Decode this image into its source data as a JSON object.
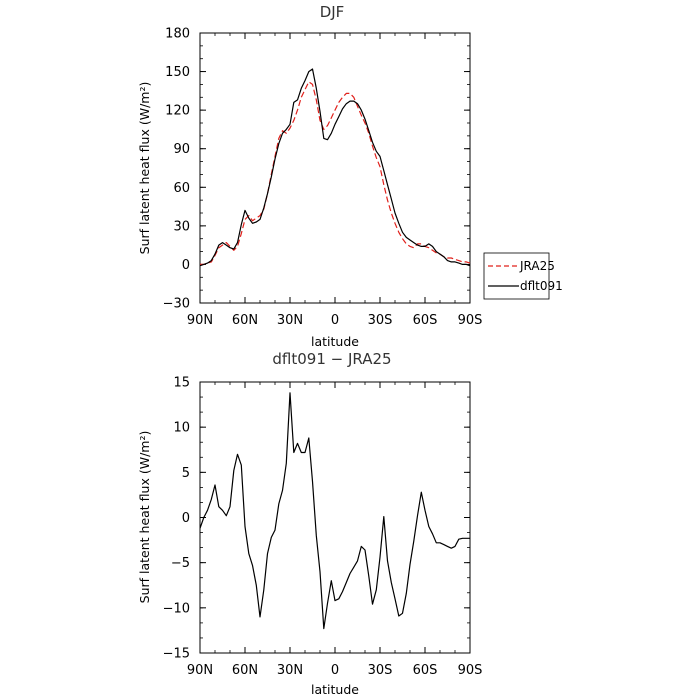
{
  "chart_data": [
    {
      "type": "line",
      "title": "DJF",
      "xlabel": "latitude",
      "ylabel": "Surf latent heat flux (W/m²)",
      "xlim": [
        90,
        -90
      ],
      "ylim": [
        -30,
        180
      ],
      "x_ticks": [
        90,
        60,
        30,
        0,
        -30,
        -60,
        -90
      ],
      "x_tick_labels": [
        "90N",
        "60N",
        "30N",
        "0",
        "30S",
        "60S",
        "90S"
      ],
      "y_ticks": [
        -30,
        0,
        30,
        60,
        90,
        120,
        150,
        180
      ],
      "y_tick_labels": [
        "−30",
        "0",
        "30",
        "60",
        "90",
        "120",
        "150",
        "180"
      ],
      "legend_position": "right",
      "series": [
        {
          "name": "JRA25",
          "color": "#e0201b",
          "dash": "dashed",
          "x": [
            90,
            87.5,
            85,
            82.5,
            80,
            77.5,
            75,
            72.5,
            70,
            67.5,
            65,
            62.5,
            60,
            57.5,
            55,
            52.5,
            50,
            47.5,
            45,
            42.5,
            40,
            37.5,
            35,
            32.5,
            30,
            27.5,
            25,
            22.5,
            20,
            17.5,
            15,
            12.5,
            10,
            7.5,
            5,
            2.5,
            0,
            -2.5,
            -5,
            -7.5,
            -10,
            -12.5,
            -15,
            -17.5,
            -20,
            -22.5,
            -25,
            -27.5,
            -30,
            -32.5,
            -35,
            -37.5,
            -40,
            -42.5,
            -45,
            -47.5,
            -50,
            -52.5,
            -55,
            -57.5,
            -60,
            -62.5,
            -65,
            -67.5,
            -70,
            -72.5,
            -75,
            -77.5,
            -80,
            -82.5,
            -85,
            -87.5,
            -90
          ],
          "y": [
            0,
            0,
            1,
            2,
            7,
            13,
            15,
            17,
            14,
            11,
            14,
            24,
            35,
            38,
            34,
            36,
            38,
            43,
            55,
            70,
            84,
            98,
            104,
            102,
            106,
            112,
            120,
            130,
            136,
            142,
            140,
            128,
            112,
            105,
            108,
            114,
            120,
            126,
            130,
            133,
            133,
            130,
            123,
            116,
            110,
            102,
            92,
            83,
            76,
            62,
            50,
            40,
            32,
            25,
            20,
            16,
            14,
            13,
            16,
            16,
            14,
            13,
            11,
            9,
            8,
            6,
            5,
            5,
            4,
            3,
            2,
            2,
            1
          ]
        },
        {
          "name": "dflt091",
          "color": "#000000",
          "dash": "solid",
          "x": [
            90,
            87.5,
            85,
            82.5,
            80,
            77.5,
            75,
            72.5,
            70,
            67.5,
            65,
            62.5,
            60,
            57.5,
            55,
            52.5,
            50,
            47.5,
            45,
            42.5,
            40,
            37.5,
            35,
            32.5,
            30,
            27.5,
            25,
            22.5,
            20,
            17.5,
            15,
            12.5,
            10,
            7.5,
            5,
            2.5,
            0,
            -2.5,
            -5,
            -7.5,
            -10,
            -12.5,
            -15,
            -17.5,
            -20,
            -22.5,
            -25,
            -27.5,
            -30,
            -32.5,
            -35,
            -37.5,
            -40,
            -42.5,
            -45,
            -47.5,
            -50,
            -52.5,
            -55,
            -57.5,
            -60,
            -62.5,
            -65,
            -67.5,
            -70,
            -72.5,
            -75,
            -77.5,
            -80,
            -82.5,
            -85,
            -87.5,
            -90
          ],
          "y": [
            -1,
            0,
            1,
            3,
            8,
            15,
            17,
            15,
            13,
            12,
            17,
            31,
            42,
            36,
            32,
            33,
            35,
            44,
            55,
            68,
            82,
            94,
            102,
            105,
            109,
            126,
            128,
            137,
            143,
            150,
            152,
            137,
            119,
            98,
            97,
            102,
            109,
            115,
            121,
            125,
            127,
            127,
            125,
            120,
            113,
            104,
            95,
            88,
            84,
            73,
            62,
            51,
            40,
            32,
            25,
            21,
            19,
            17,
            15,
            14,
            14,
            16,
            14,
            10,
            8,
            6,
            3,
            2,
            2,
            1,
            0,
            0,
            -1
          ]
        }
      ]
    },
    {
      "type": "line",
      "title": "dflt091 − JRA25",
      "xlabel": "latitude",
      "ylabel": "Surf latent heat flux (W/m²)",
      "xlim": [
        90,
        -90
      ],
      "ylim": [
        -15,
        15
      ],
      "x_ticks": [
        90,
        60,
        30,
        0,
        -30,
        -60,
        -90
      ],
      "x_tick_labels": [
        "90N",
        "60N",
        "30N",
        "0",
        "30S",
        "60S",
        "90S"
      ],
      "y_ticks": [
        -15,
        -10,
        -5,
        0,
        5,
        10,
        15
      ],
      "y_tick_labels": [
        "−15",
        "−10",
        "−5",
        "0",
        "5",
        "10",
        "15"
      ],
      "series": [
        {
          "color": "#000000",
          "dash": "solid",
          "x": [
            90,
            87.5,
            85,
            82.5,
            80,
            77.5,
            75,
            72.5,
            70,
            67.5,
            65,
            62.5,
            60,
            57.5,
            55,
            52.5,
            50,
            47.5,
            45,
            42.5,
            40,
            37.5,
            35,
            32.5,
            30,
            27.5,
            25,
            22.5,
            20,
            17.5,
            15,
            12.5,
            10,
            7.5,
            5,
            2.5,
            0,
            -2.5,
            -5,
            -7.5,
            -10,
            -12.5,
            -15,
            -17.5,
            -20,
            -22.5,
            -25,
            -27.5,
            -30,
            -32.5,
            -35,
            -37.5,
            -40,
            -42.5,
            -45,
            -47.5,
            -50,
            -52.5,
            -55,
            -57.5,
            -60,
            -62.5,
            -65,
            -67.5,
            -70,
            -72.5,
            -75,
            -77.5,
            -80,
            -82.5,
            -85,
            -87.5,
            -90
          ],
          "y": [
            -1.2,
            0,
            0.8,
            2,
            3.6,
            1.2,
            0.8,
            0.2,
            1.2,
            5.2,
            7,
            5.8,
            -1,
            -4,
            -5.3,
            -7.5,
            -11,
            -8,
            -4,
            -2.2,
            -1.4,
            1.5,
            3,
            6,
            13.8,
            7.2,
            8.2,
            7.2,
            7.2,
            8.8,
            4,
            -2,
            -6,
            -12.3,
            -9.5,
            -7,
            -9.2,
            -9,
            -8.2,
            -7.2,
            -6.2,
            -5.5,
            -4.8,
            -3.2,
            -3.6,
            -6.5,
            -9.6,
            -8,
            -4.4,
            0.1,
            -4.8,
            -7.2,
            -9,
            -10.9,
            -10.6,
            -8.4,
            -5.2,
            -2.6,
            0.2,
            2.8,
            0.8,
            -1,
            -1.8,
            -2.8,
            -2.8,
            -3,
            -3.2,
            -3.4,
            -3.2,
            -2.4,
            -2.3,
            -2.3,
            -2.3
          ]
        }
      ]
    }
  ]
}
